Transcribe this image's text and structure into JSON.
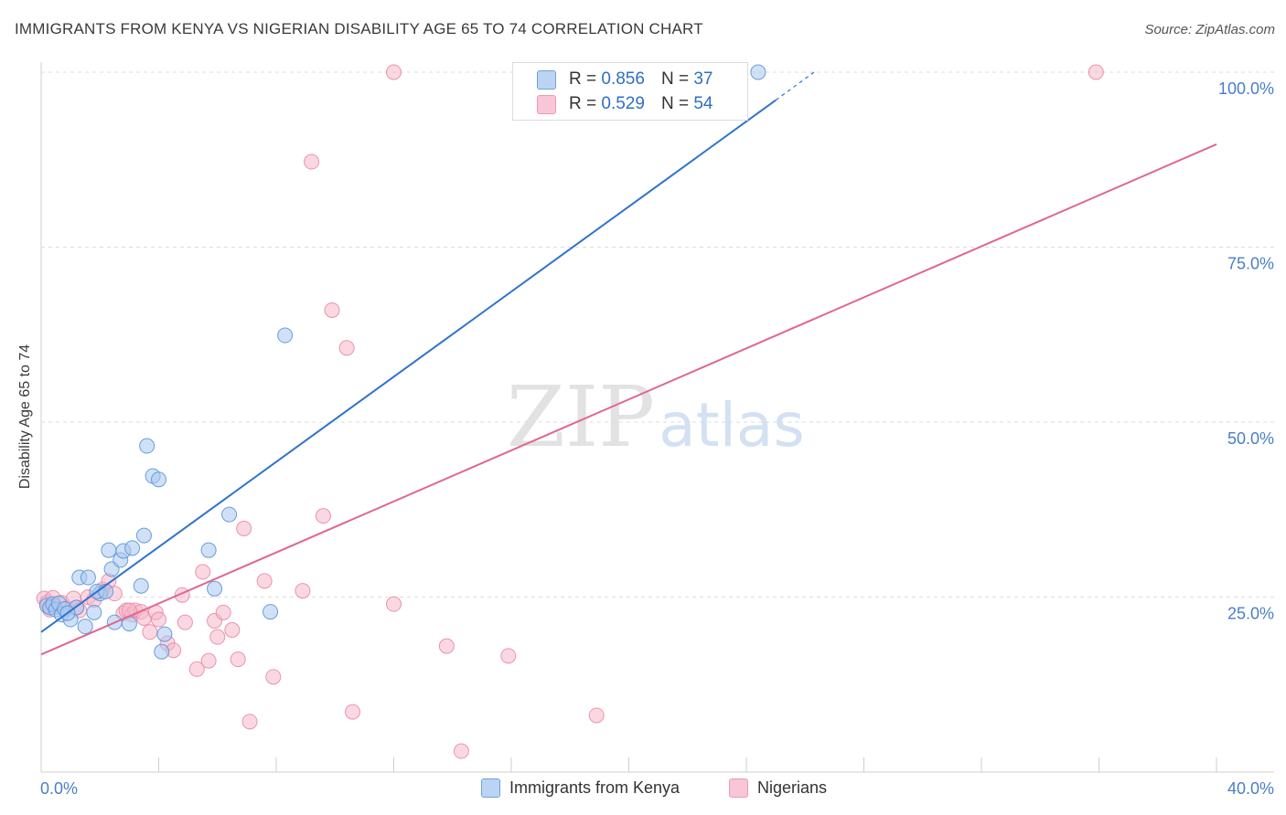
{
  "header": {
    "title": "IMMIGRANTS FROM KENYA VS NIGERIAN DISABILITY AGE 65 TO 74 CORRELATION CHART",
    "source": "Source: ZipAtlas.com"
  },
  "watermark": {
    "zip": "ZIP",
    "atlas": "atlas"
  },
  "legend": {
    "kenya": {
      "r_label": "R =",
      "r_value": "0.856",
      "n_label": "N =",
      "n_value": "37"
    },
    "nigeria": {
      "r_label": "R =",
      "r_value": "0.529",
      "n_label": "N =",
      "n_value": "54"
    }
  },
  "colors": {
    "kenya_fill": "#a9c8f0",
    "kenya_stroke": "#5b93d8",
    "kenya_line": "#2f73cc",
    "nigeria_fill": "#f5b8cb",
    "nigeria_stroke": "#ea88a6",
    "nigeria_line": "#e06690",
    "axis_label": "#4a7ec9",
    "grid": "#dddddd"
  },
  "chart_data": {
    "type": "scatter",
    "title": "IMMIGRANTS FROM KENYA VS NIGERIAN DISABILITY AGE 65 TO 74 CORRELATION CHART",
    "xlabel": "",
    "ylabel": "Disability Age 65 to 74",
    "xlim": [
      0,
      40
    ],
    "ylim": [
      0,
      100
    ],
    "x_tick_labels": [
      "0.0%",
      "40.0%"
    ],
    "y_tick_labels": [
      "25.0%",
      "50.0%",
      "75.0%",
      "100.0%"
    ],
    "y_ticks": [
      25,
      50,
      75,
      100
    ],
    "legend_position": "top-center",
    "series": [
      {
        "name": "Immigrants from Kenya",
        "r": 0.856,
        "n": 37,
        "trend": {
          "x0": 0,
          "y0": 20,
          "x1": 25,
          "y1": 96,
          "dash_to_x": 26.3,
          "dash_to_y": 100
        },
        "points": [
          [
            0.2,
            23.8
          ],
          [
            0.3,
            23.5
          ],
          [
            0.4,
            24.0
          ],
          [
            0.5,
            23.2
          ],
          [
            0.6,
            24.1
          ],
          [
            0.7,
            22.5
          ],
          [
            0.8,
            23.3
          ],
          [
            1.0,
            21.8
          ],
          [
            1.2,
            23.5
          ],
          [
            1.3,
            27.8
          ],
          [
            1.5,
            20.8
          ],
          [
            1.6,
            27.8
          ],
          [
            1.8,
            22.8
          ],
          [
            2.0,
            25.5
          ],
          [
            2.3,
            31.7
          ],
          [
            2.4,
            29.0
          ],
          [
            2.5,
            21.4
          ],
          [
            2.7,
            30.3
          ],
          [
            2.8,
            31.6
          ],
          [
            3.0,
            21.2
          ],
          [
            3.1,
            32.0
          ],
          [
            3.4,
            26.6
          ],
          [
            3.5,
            33.8
          ],
          [
            3.6,
            46.6
          ],
          [
            3.8,
            42.3
          ],
          [
            4.0,
            41.8
          ],
          [
            4.1,
            17.2
          ],
          [
            4.2,
            19.7
          ],
          [
            5.7,
            31.7
          ],
          [
            5.9,
            26.2
          ],
          [
            6.4,
            36.8
          ],
          [
            7.8,
            22.9
          ],
          [
            8.3,
            62.4
          ],
          [
            24.4,
            100.0
          ],
          [
            0.9,
            22.7
          ],
          [
            1.9,
            25.8
          ],
          [
            2.2,
            25.8
          ]
        ]
      },
      {
        "name": "Nigerians",
        "r": 0.529,
        "n": 54,
        "trend": {
          "x0": 0,
          "y0": 16.8,
          "x1": 40,
          "y1": 89.7
        },
        "points": [
          [
            0.1,
            24.8
          ],
          [
            0.2,
            24.2
          ],
          [
            0.3,
            23.2
          ],
          [
            0.4,
            24.9
          ],
          [
            0.5,
            23.6
          ],
          [
            0.7,
            24.2
          ],
          [
            0.9,
            23.4
          ],
          [
            1.1,
            24.8
          ],
          [
            1.2,
            23.5
          ],
          [
            1.6,
            25.0
          ],
          [
            1.8,
            24.6
          ],
          [
            2.1,
            26.1
          ],
          [
            2.3,
            27.3
          ],
          [
            2.5,
            25.5
          ],
          [
            2.8,
            22.7
          ],
          [
            2.9,
            23.1
          ],
          [
            3.1,
            22.5
          ],
          [
            3.2,
            23.1
          ],
          [
            3.4,
            22.9
          ],
          [
            3.5,
            22.0
          ],
          [
            3.7,
            20.0
          ],
          [
            3.9,
            22.8
          ],
          [
            4.0,
            21.8
          ],
          [
            4.3,
            18.4
          ],
          [
            4.5,
            17.4
          ],
          [
            4.8,
            25.3
          ],
          [
            4.9,
            21.4
          ],
          [
            5.3,
            14.7
          ],
          [
            5.5,
            28.6
          ],
          [
            5.7,
            15.9
          ],
          [
            5.9,
            21.6
          ],
          [
            6.0,
            19.3
          ],
          [
            6.2,
            22.8
          ],
          [
            6.5,
            20.3
          ],
          [
            6.7,
            16.1
          ],
          [
            6.9,
            34.8
          ],
          [
            7.1,
            7.2
          ],
          [
            7.6,
            27.3
          ],
          [
            7.9,
            13.6
          ],
          [
            8.9,
            25.9
          ],
          [
            9.2,
            87.2
          ],
          [
            9.6,
            36.6
          ],
          [
            9.9,
            66.0
          ],
          [
            10.4,
            60.6
          ],
          [
            10.6,
            8.6
          ],
          [
            12.0,
            100.0
          ],
          [
            12.0,
            24.0
          ],
          [
            13.8,
            18.0
          ],
          [
            14.3,
            3.0
          ],
          [
            15.9,
            16.6
          ],
          [
            18.9,
            8.1
          ],
          [
            35.9,
            100.0
          ],
          [
            1.3,
            23.1
          ],
          [
            3.0,
            23.1
          ]
        ]
      }
    ]
  },
  "bottom_legend": {
    "kenya_label": "Immigrants from Kenya",
    "nigeria_label": "Nigerians"
  }
}
